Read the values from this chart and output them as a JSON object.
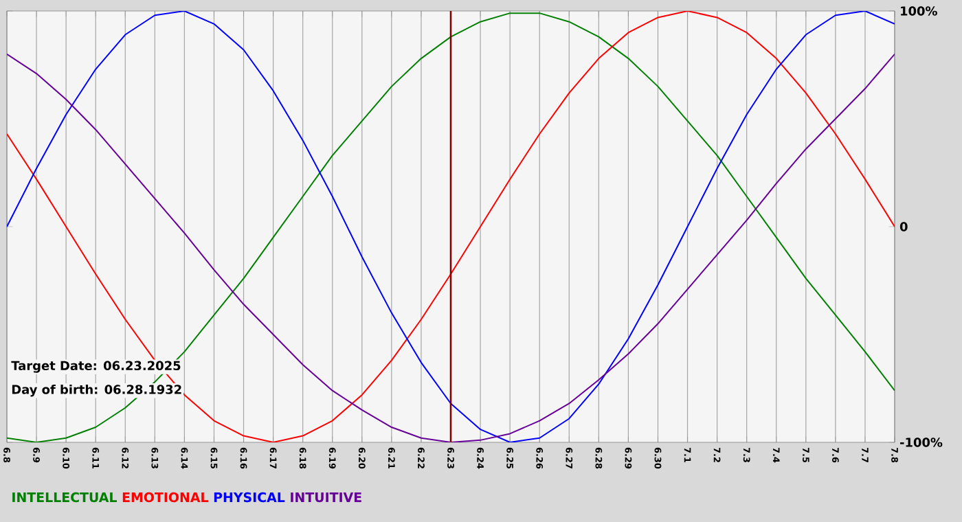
{
  "chart_data": {
    "type": "line",
    "categories": [
      "6.8",
      "6.9",
      "6.10",
      "6.11",
      "6.12",
      "6.13",
      "6.14",
      "6.15",
      "6.16",
      "6.17",
      "6.18",
      "6.19",
      "6.20",
      "6.21",
      "6.22",
      "6.23",
      "6.24",
      "6.25",
      "6.26",
      "6.27",
      "6.28",
      "6.29",
      "6.30",
      "7.1",
      "7.2",
      "7.3",
      "7.4",
      "7.5",
      "7.6",
      "7.7",
      "7.8"
    ],
    "series": [
      {
        "name": "INTELLECTUAL",
        "color": "#008000",
        "values": [
          -98,
          -100,
          -98,
          -93,
          -84,
          -72,
          -58,
          -41,
          -24,
          -5,
          14,
          33,
          49,
          65,
          78,
          88,
          95,
          99,
          99,
          95,
          88,
          78,
          65,
          49,
          33,
          14,
          -5,
          -24,
          -41,
          -58,
          -76
        ]
      },
      {
        "name": "EMOTIONAL",
        "color": "#ff0000",
        "values": [
          43,
          22,
          0,
          -22,
          -43,
          -62,
          -78,
          -90,
          -97,
          -100,
          -97,
          -90,
          -78,
          -62,
          -43,
          -22,
          0,
          22,
          43,
          62,
          78,
          90,
          97,
          100,
          97,
          90,
          78,
          62,
          43,
          22,
          0
        ]
      },
      {
        "name": "PHYSICAL",
        "color": "#0000ff",
        "values": [
          0,
          27,
          52,
          73,
          89,
          98,
          100,
          94,
          82,
          63,
          40,
          14,
          -14,
          -40,
          -63,
          -82,
          -94,
          -100,
          -98,
          -89,
          -73,
          -52,
          -27,
          0,
          27,
          52,
          73,
          89,
          98,
          100,
          94
        ]
      },
      {
        "name": "INTUITIVE",
        "color": "#660099",
        "values": [
          80,
          71,
          59,
          45,
          29,
          13,
          -3,
          -20,
          -36,
          -50,
          -64,
          -76,
          -85,
          -93,
          -98,
          -100,
          -99,
          -96,
          -90,
          -82,
          -71,
          -59,
          -45,
          -29,
          -13,
          3,
          20,
          36,
          50,
          64,
          80
        ]
      }
    ],
    "ylim": [
      -100,
      100
    ],
    "yticks": [
      {
        "value": 100,
        "label": "100%"
      },
      0,
      {
        "value": -100,
        "label": "-100%"
      }
    ],
    "grid": "x",
    "legend": "bottom",
    "ref_lines": [
      {
        "axis": "x",
        "value": "6.23",
        "color": "#800000"
      }
    ],
    "annotations": [
      "Target Date: 06.23.2025",
      "Day of birth: 06.28.1932"
    ]
  }
}
